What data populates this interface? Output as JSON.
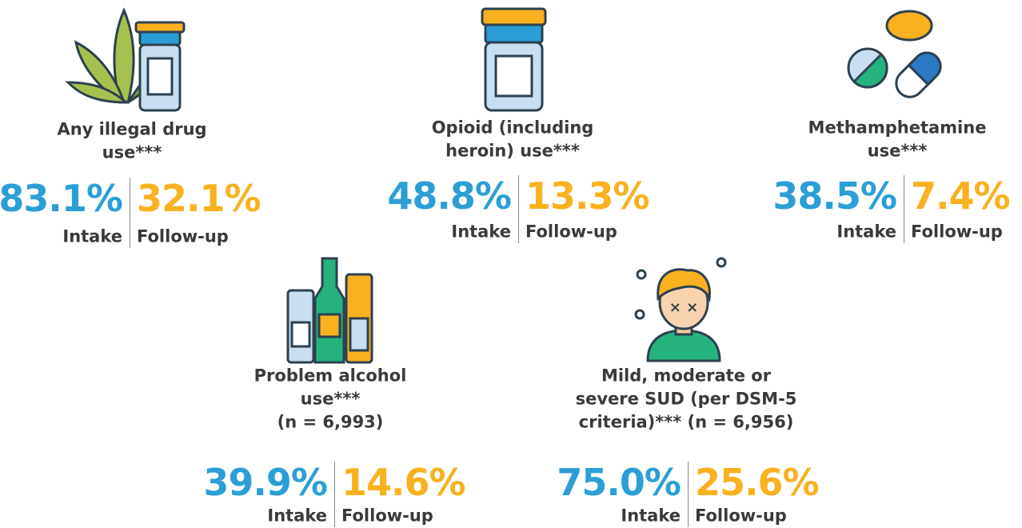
{
  "labels": {
    "intake": "Intake",
    "followup": "Follow-up"
  },
  "items": [
    {
      "label": [
        "Any illegal drug",
        "use***"
      ],
      "intake": "83.1%",
      "followup": "32.1%"
    },
    {
      "label": [
        "Opioid (including",
        "heroin) use***"
      ],
      "intake": "48.8%",
      "followup": "13.3%"
    },
    {
      "label": [
        "Methamphetamine",
        "use***"
      ],
      "intake": "38.5%",
      "followup": "7.4%"
    },
    {
      "label": [
        "Problem alcohol",
        "use***",
        "(n = 6,993)"
      ],
      "intake": "39.9%",
      "followup": "14.6%"
    },
    {
      "label": [
        "Mild, moderate or",
        "severe SUD (per DSM-5",
        "criteria)*** (n = 6,956)"
      ],
      "intake": "75.0%",
      "followup": "25.6%"
    }
  ]
}
